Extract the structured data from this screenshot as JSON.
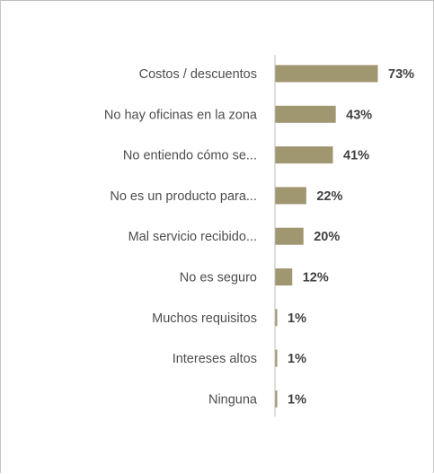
{
  "chart_data": {
    "type": "bar",
    "orientation": "horizontal",
    "categories": [
      "Costos / descuentos",
      "No hay oficinas en la zona",
      "No entiendo cómo se...",
      "No es un producto para...",
      "Mal servicio recibido...",
      "No es seguro",
      "Muchos requisitos",
      "Intereses altos",
      "Ninguna"
    ],
    "values": [
      73,
      43,
      41,
      22,
      20,
      12,
      1,
      1,
      1
    ],
    "value_labels": [
      "73%",
      "43%",
      "41%",
      "22%",
      "20%",
      "12%",
      "1%",
      "1%",
      "1%"
    ],
    "unit": "%",
    "xlim": [
      0,
      73
    ],
    "title": "",
    "xlabel": "",
    "ylabel": "",
    "grid": false,
    "legend": "none",
    "bar_color": "#a09670",
    "axis_color": "#bfbfbf"
  }
}
